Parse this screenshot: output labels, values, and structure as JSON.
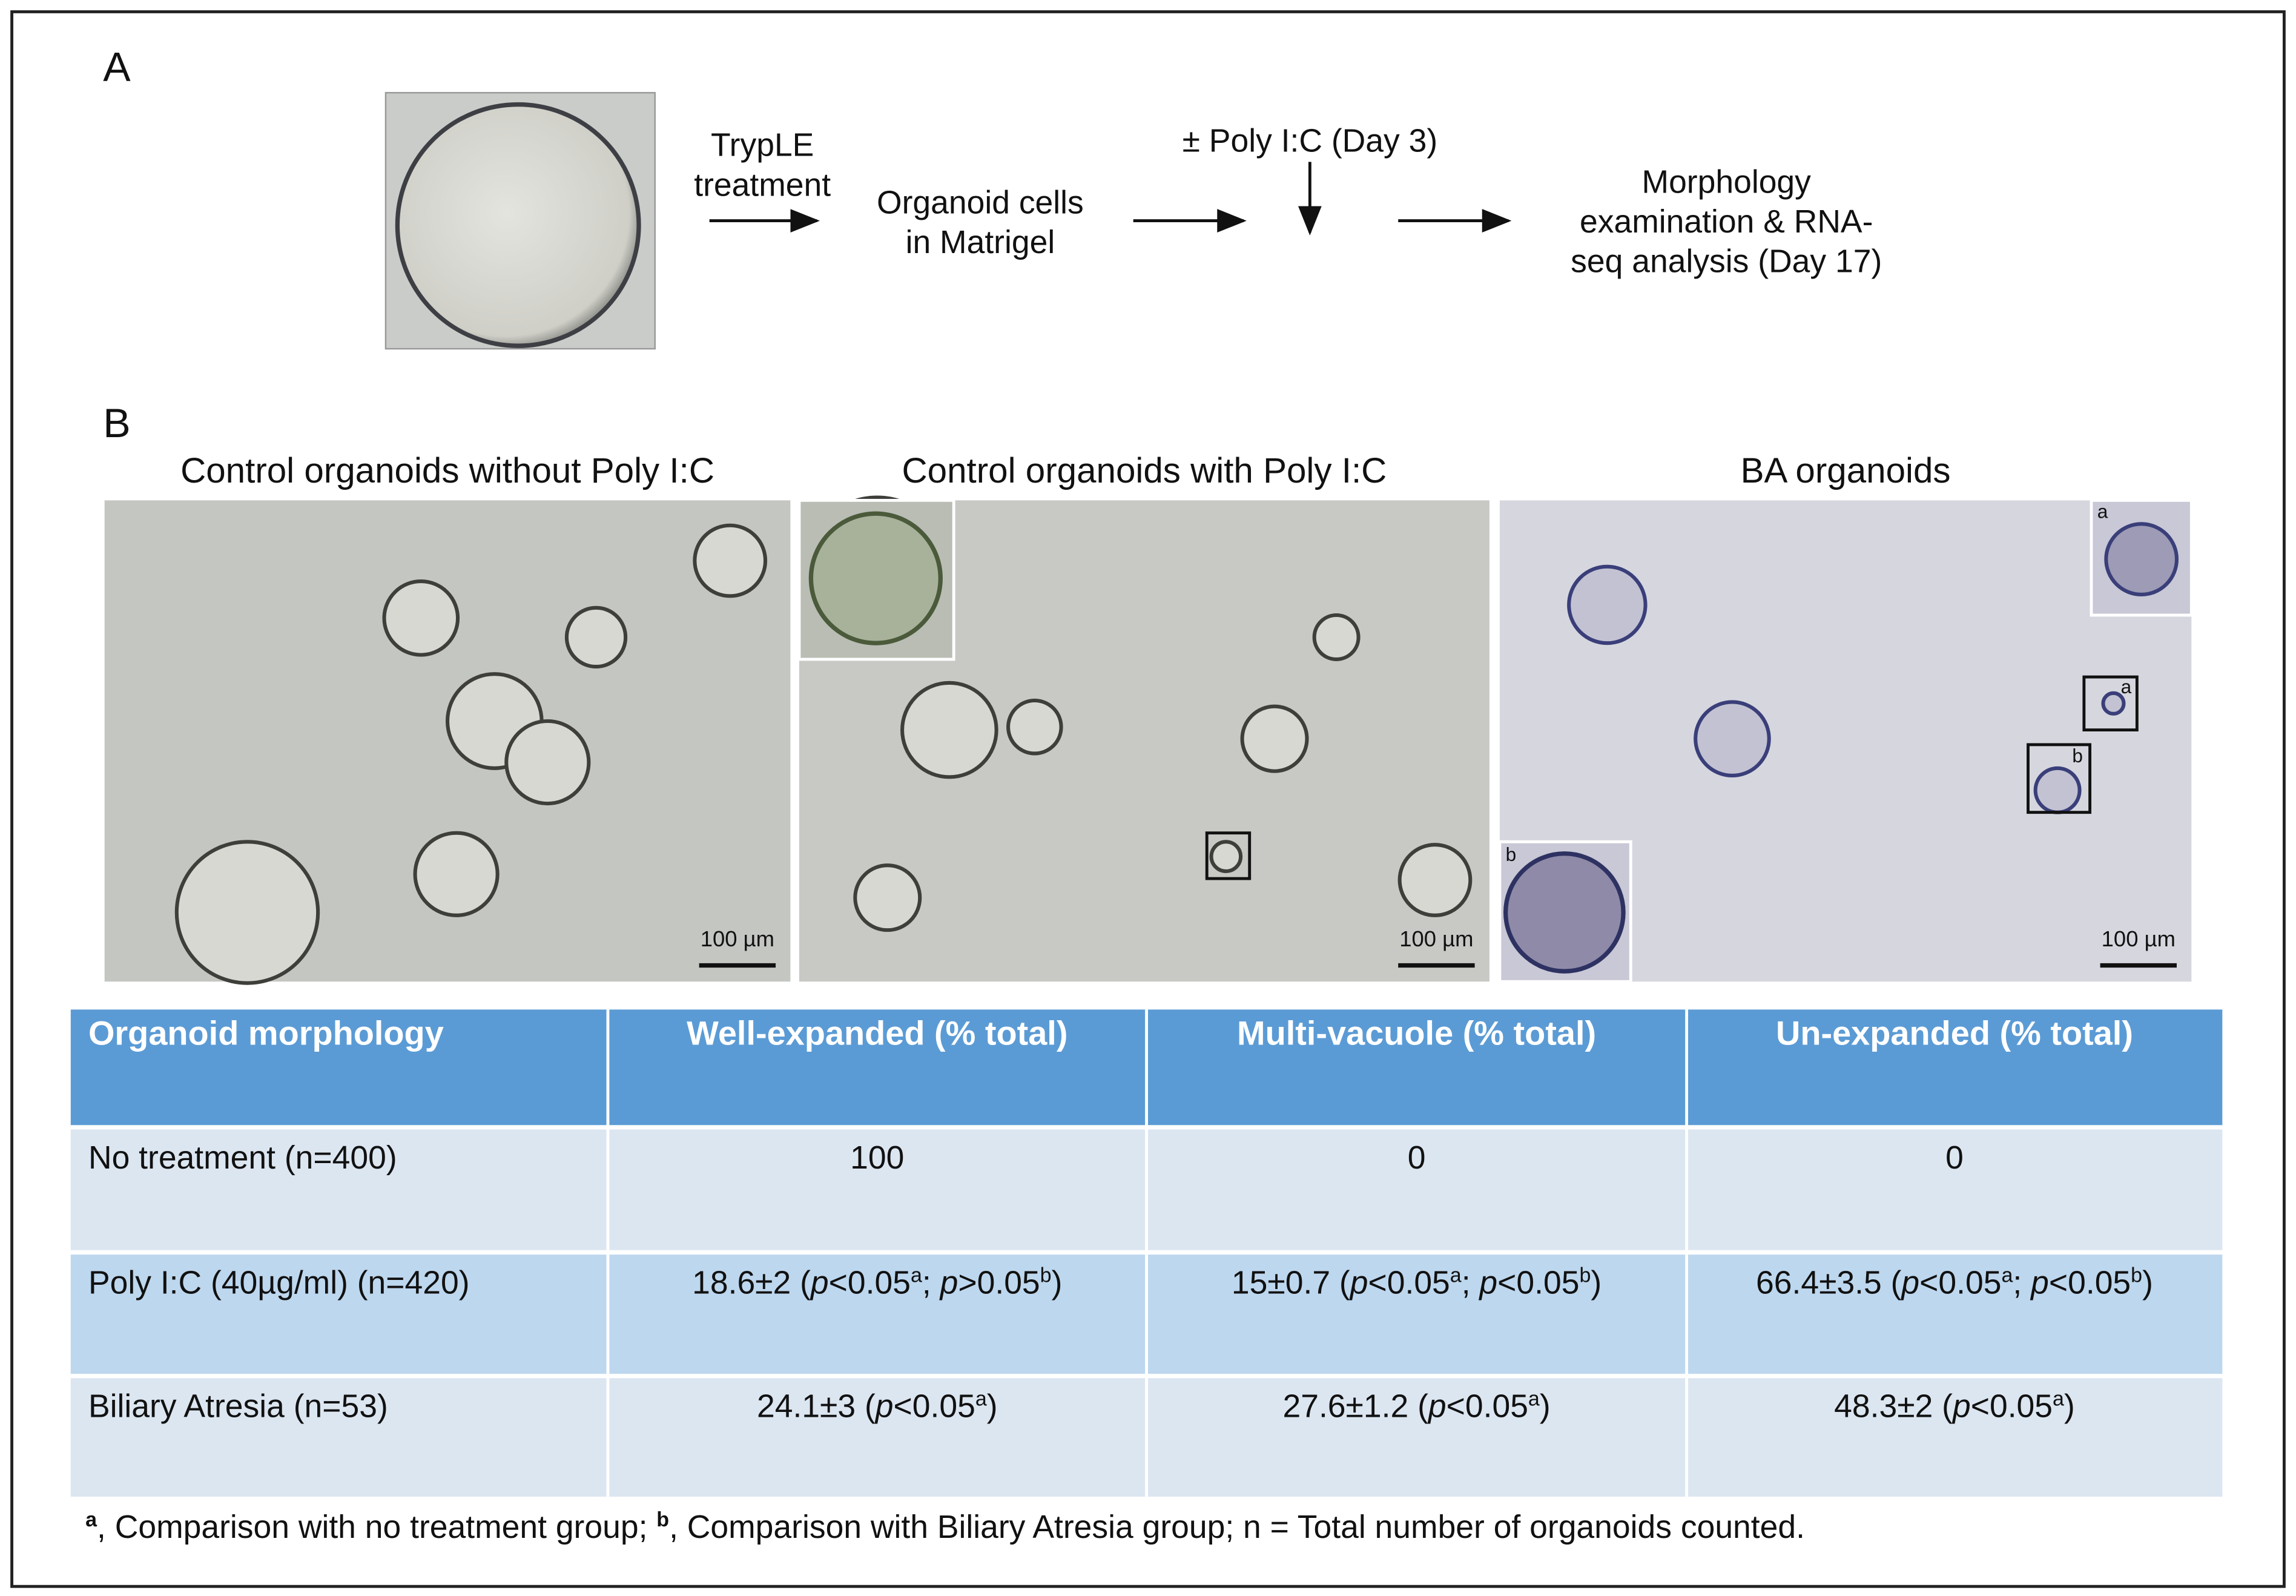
{
  "panel_a": {
    "label": "A",
    "steps": [
      {
        "lines": [
          "TrypLE",
          "treatment"
        ]
      },
      {
        "lines": [
          "Organoid cells",
          "in Matrigel"
        ]
      },
      {
        "lines": [
          "± Poly I:C (Day 3)"
        ]
      },
      {
        "lines": [
          "Morphology",
          "examination & RNA-",
          "seq analysis (Day 17)"
        ]
      }
    ]
  },
  "panel_b": {
    "label": "B",
    "images": [
      {
        "title": "Control organoids without Poly I:C",
        "scale_bar": "100 µm"
      },
      {
        "title": "Control organoids with Poly I:C",
        "scale_bar": "100 µm"
      },
      {
        "title": "BA organoids",
        "scale_bar": "100 µm",
        "insets": [
          "a",
          "b"
        ]
      }
    ]
  },
  "table": {
    "header": [
      "Organoid morphology",
      "Well-expanded (% total)",
      "Multi-vacuole (% total)",
      "Un-expanded (% total)"
    ],
    "rows": [
      [
        "No treatment (n=400)",
        100,
        0,
        0
      ],
      [
        "Poly I:C (40µg/ml) (n=420)",
        [
          "18.6±2 (",
          "p",
          "<0.05",
          "a",
          "; ",
          "p",
          ">0.05",
          "b",
          ")"
        ],
        [
          "15±0.7 (",
          "p",
          "<0.05",
          "a",
          "; ",
          "p",
          "<0.05",
          "b",
          ")"
        ],
        [
          "66.4±3.5 (",
          "p",
          "<0.05",
          "a",
          "; ",
          "p",
          "<0.05",
          "b",
          ")"
        ]
      ],
      [
        "Biliary Atresia (n=53)",
        [
          "24.1±3 (",
          "p",
          "<0.05",
          "a",
          ")"
        ],
        [
          "27.6±1.2 (",
          "p",
          "<0.05",
          "a",
          ")"
        ],
        [
          "48.3±2 (",
          "p",
          "<0.05",
          "a",
          ")"
        ]
      ]
    ],
    "footnote": [
      "a",
      ", Comparison with no treatment group; ",
      "b",
      ", Comparison with Biliary Atresia group; n = Total number of organoids counted."
    ]
  }
}
